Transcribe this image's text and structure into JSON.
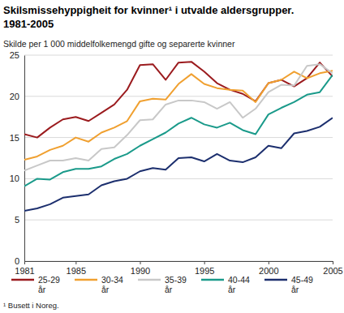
{
  "chart_data": {
    "type": "line",
    "title": "Skilsmissehyppigheit for kvinner¹ i utvalde aldersgrupper. 1981-2005",
    "subtitle": "Skilde per 1 000 middelfolkemengd gifte og separerte kvinner",
    "footnote": "¹ Busett i Noreg.",
    "x": [
      1981,
      1982,
      1983,
      1984,
      1985,
      1986,
      1987,
      1988,
      1989,
      1990,
      1991,
      1992,
      1993,
      1994,
      1995,
      1996,
      1997,
      1998,
      1999,
      2000,
      2001,
      2002,
      2003,
      2004,
      2005
    ],
    "xlim": [
      1981,
      2005
    ],
    "xticks": [
      1981,
      1985,
      1990,
      1995,
      2000,
      2005
    ],
    "ylim": [
      0,
      25
    ],
    "yticks": [
      0,
      5,
      10,
      15,
      20,
      25
    ],
    "grid": true,
    "legend": "bottom",
    "series": [
      {
        "name": "25-29 år",
        "color": "#9b1b1e",
        "values": [
          15.4,
          15.0,
          16.2,
          17.2,
          17.5,
          17.0,
          18.0,
          19.0,
          20.8,
          23.8,
          23.9,
          22.0,
          24.1,
          24.2,
          23.0,
          21.6,
          20.8,
          20.3,
          19.4,
          21.6,
          22.0,
          21.2,
          22.2,
          24.1,
          22.4
        ]
      },
      {
        "name": "30-34 år",
        "color": "#f0a030",
        "values": [
          12.3,
          12.7,
          13.5,
          14.0,
          15.0,
          14.5,
          15.6,
          16.2,
          17.0,
          19.4,
          19.7,
          19.6,
          21.5,
          22.7,
          21.5,
          21.0,
          20.8,
          20.7,
          19.3,
          21.6,
          22.0,
          23.0,
          22.2,
          22.8,
          23.1
        ]
      },
      {
        "name": "35-39 år",
        "color": "#c8c8c8",
        "values": [
          11.0,
          11.6,
          12.2,
          12.2,
          12.5,
          12.2,
          13.6,
          13.8,
          15.3,
          17.1,
          17.2,
          19.0,
          19.5,
          19.5,
          19.3,
          18.5,
          19.3,
          17.4,
          18.5,
          20.5,
          21.4,
          21.3,
          23.7,
          23.9,
          22.8
        ]
      },
      {
        "name": "40-44 år",
        "color": "#1a9a8a",
        "values": [
          9.1,
          10.0,
          9.9,
          10.8,
          11.2,
          11.2,
          11.5,
          12.4,
          13.0,
          14.0,
          14.8,
          15.6,
          16.7,
          17.4,
          16.6,
          16.2,
          16.8,
          15.9,
          15.4,
          17.8,
          18.6,
          19.3,
          20.2,
          20.5,
          22.6
        ]
      },
      {
        "name": "45-49 år",
        "color": "#1c2f6e",
        "values": [
          6.1,
          6.4,
          6.9,
          7.7,
          7.9,
          8.1,
          9.2,
          9.7,
          10.0,
          10.9,
          11.3,
          11.1,
          12.5,
          12.6,
          12.1,
          13.0,
          12.2,
          12.0,
          12.6,
          14.0,
          13.7,
          15.5,
          15.8,
          16.3,
          17.4
        ]
      }
    ]
  }
}
